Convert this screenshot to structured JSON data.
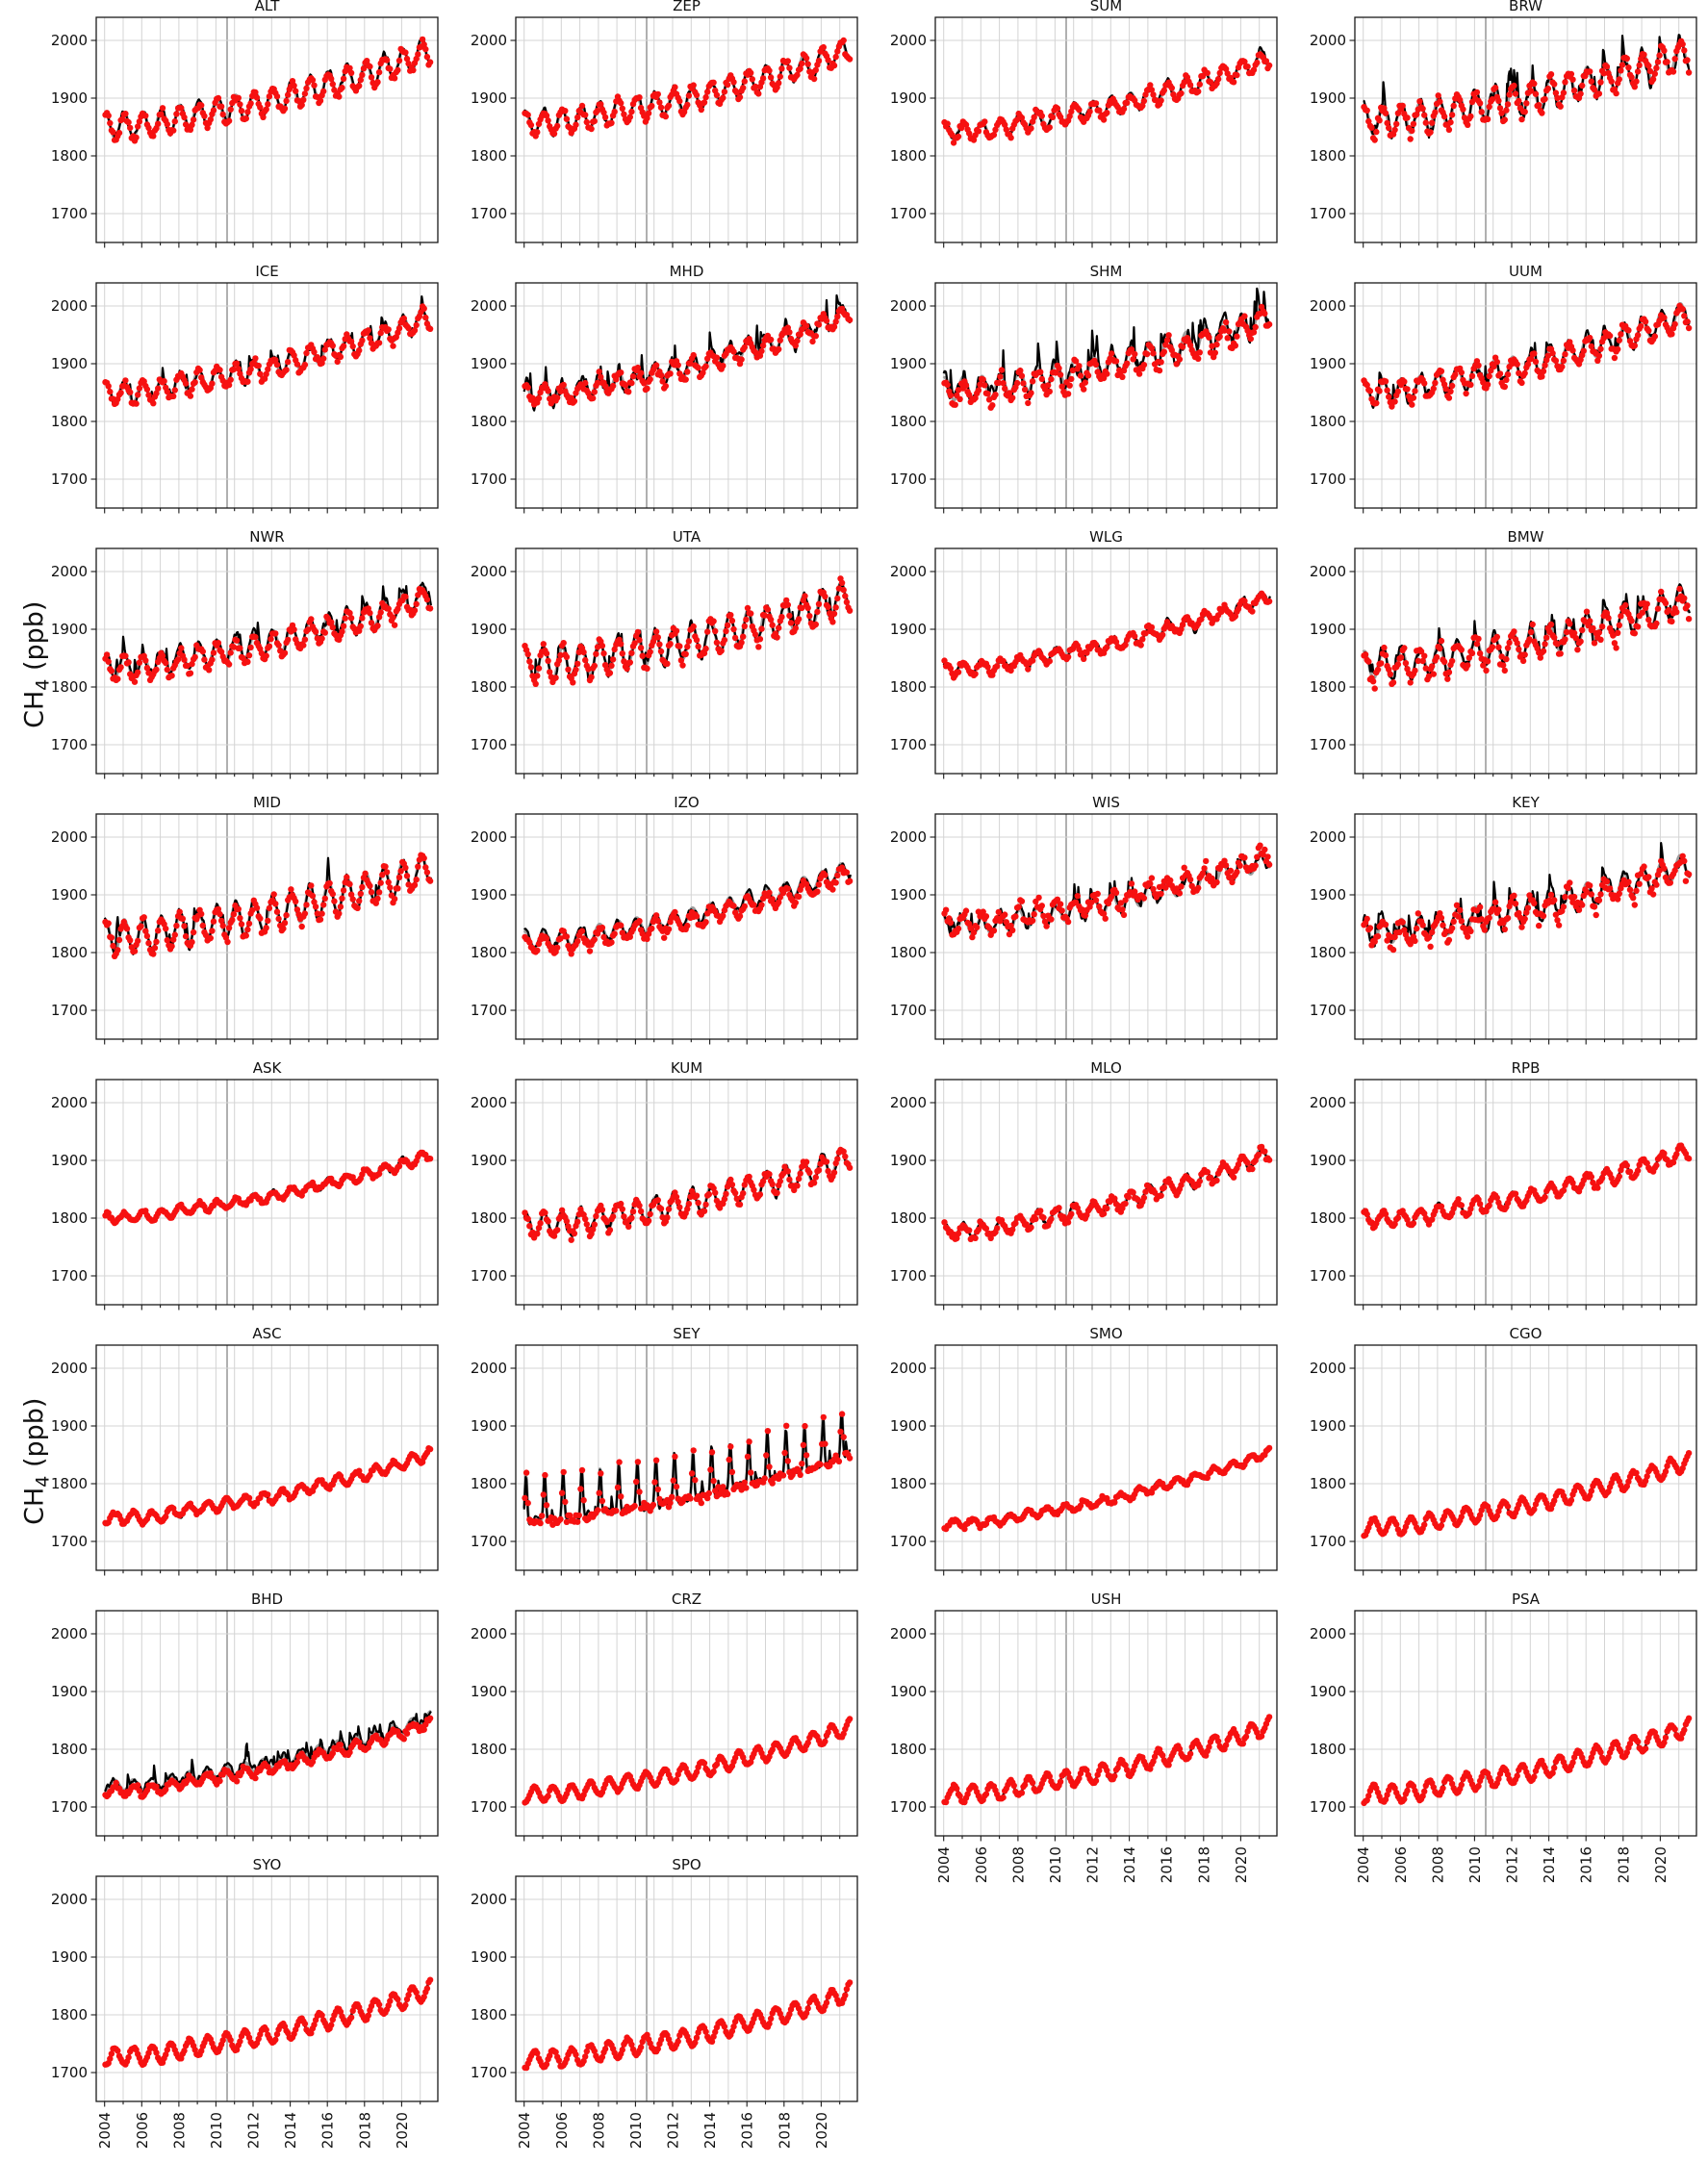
{
  "figure": {
    "background": "#ffffff",
    "ylabel_main": "CH",
    "ylabel_sub": "4",
    "ylabel_unit": " (ppb)"
  },
  "chart_data": {
    "type": "line",
    "description": "30-panel grid of CH4 time series per station, 2004-2021: black model line, gray smoothed line, red observation dots",
    "grid": {
      "rows": 8,
      "cols": 4
    },
    "x_range": [
      2003.55,
      2021.95
    ],
    "y_range_ppb": [
      1650,
      2040
    ],
    "y_ticks_ppb": [
      2000,
      1900,
      1800,
      1700
    ],
    "x_tick_years": [
      "2004",
      "2006",
      "2008",
      "2010",
      "2012",
      "2014",
      "2016",
      "2018",
      "2020"
    ],
    "x_grid_year_first": 2004,
    "x_grid_year_last": 2021,
    "x_grid_emphasized_year": 2010.6,
    "data_end_time": 2021.58,
    "legend": "none",
    "series_legend": [
      {
        "name": "model-monthly",
        "style": "black solid line"
      },
      {
        "name": "model-smoothed",
        "style": "gray solid line"
      },
      {
        "name": "observations",
        "style": "red filled dots, monthly"
      }
    ],
    "colors": {
      "model_line": "#000000",
      "smoothed_line": "#9e9e9e",
      "obs_marker": "#f61111",
      "grid_minor": "#d4d4d4",
      "grid_emph": "#a8a8a8",
      "frame": "#1a1a1a",
      "tick": "#1a1a1a",
      "text": "#111111"
    },
    "growth_curve": {
      "anchor_years": [
        2004,
        2005,
        2006,
        2007,
        2008,
        2009,
        2010,
        2011,
        2012,
        2013,
        2014,
        2015,
        2016,
        2017,
        2018,
        2019,
        2020,
        2021,
        2022
      ],
      "fraction": [
        0.0,
        0.01,
        0.015,
        0.04,
        0.1,
        0.145,
        0.185,
        0.225,
        0.27,
        0.315,
        0.375,
        0.45,
        0.52,
        0.575,
        0.645,
        0.72,
        0.8,
        0.9,
        1.0
      ]
    },
    "stations": [
      {
        "code": "ALT",
        "ppb_2004": 1852,
        "ppb_2022": 1990,
        "seasonal_amp": 22,
        "noise": 7,
        "obs_noise": 7,
        "obs_bias": -2,
        "phase": 0.06
      },
      {
        "code": "ZEP",
        "ppb_2004": 1858,
        "ppb_2022": 1992,
        "seasonal_amp": 20,
        "noise": 7,
        "obs_noise": 7,
        "obs_bias": -2,
        "phase": 0.06
      },
      {
        "code": "SUM",
        "ppb_2004": 1843,
        "ppb_2022": 1978,
        "seasonal_amp": 15,
        "noise": 6,
        "obs_noise": 6,
        "obs_bias": -2,
        "phase": 0.06
      },
      {
        "code": "BRW",
        "ppb_2004": 1862,
        "ppb_2022": 1988,
        "seasonal_amp": 26,
        "noise": 13,
        "obs_noise": 10,
        "obs_bias": -2,
        "phase": 0.06
      },
      {
        "code": "ICE",
        "ppb_2004": 1850,
        "ppb_2022": 1990,
        "seasonal_amp": 18,
        "noise": 8,
        "obs_noise": 7,
        "obs_bias": -2,
        "phase": 0.06
      },
      {
        "code": "MHD",
        "ppb_2004": 1848,
        "ppb_2022": 1998,
        "seasonal_amp": 16,
        "noise": 13,
        "obs_noise": 8,
        "obs_bias": -3,
        "phase": 0.06
      },
      {
        "code": "SHM",
        "ppb_2004": 1856,
        "ppb_2022": 1992,
        "seasonal_amp": 20,
        "noise": 17,
        "obs_noise": 12,
        "obs_bias": -8,
        "phase": 0.06
      },
      {
        "code": "UUM",
        "ppb_2004": 1852,
        "ppb_2022": 1998,
        "seasonal_amp": 20,
        "noise": 10,
        "obs_noise": 8,
        "obs_bias": -3,
        "phase": 0.06
      },
      {
        "code": "NWR",
        "ppb_2004": 1836,
        "ppb_2022": 1968,
        "seasonal_amp": 20,
        "noise": 9,
        "obs_noise": 8,
        "obs_bias": -5,
        "phase": 0.06
      },
      {
        "code": "UTA",
        "ppb_2004": 1840,
        "ppb_2022": 1965,
        "seasonal_amp": 28,
        "noise": 10,
        "obs_noise": 9,
        "obs_bias": -3,
        "phase": 0.06
      },
      {
        "code": "WLG",
        "ppb_2004": 1832,
        "ppb_2022": 1965,
        "seasonal_amp": 10,
        "noise": 7,
        "obs_noise": 6,
        "obs_bias": -1,
        "phase": 0.06
      },
      {
        "code": "BMW",
        "ppb_2004": 1838,
        "ppb_2022": 1960,
        "seasonal_amp": 24,
        "noise": 10,
        "obs_noise": 16,
        "obs_bias": -5,
        "phase": 0.06
      },
      {
        "code": "MID",
        "ppb_2004": 1828,
        "ppb_2022": 1955,
        "seasonal_amp": 28,
        "noise": 9,
        "obs_noise": 8,
        "obs_bias": -3,
        "phase": 0.06
      },
      {
        "code": "IZO",
        "ppb_2004": 1822,
        "ppb_2022": 1952,
        "seasonal_amp": 14,
        "noise": 7,
        "obs_noise": 7,
        "obs_bias": -8,
        "phase": 0.06
      },
      {
        "code": "WIS",
        "ppb_2004": 1845,
        "ppb_2022": 1970,
        "seasonal_amp": 16,
        "noise": 9,
        "obs_noise": 13,
        "obs_bias": 4,
        "phase": 0.06
      },
      {
        "code": "KEY",
        "ppb_2004": 1836,
        "ppb_2022": 1960,
        "seasonal_amp": 20,
        "noise": 11,
        "obs_noise": 15,
        "obs_bias": -4,
        "phase": 0.06
      },
      {
        "code": "ASK",
        "ppb_2004": 1802,
        "ppb_2022": 1916,
        "seasonal_amp": 8,
        "noise": 4,
        "obs_noise": 4,
        "obs_bias": -1,
        "phase": 0.06
      },
      {
        "code": "KUM",
        "ppb_2004": 1788,
        "ppb_2022": 1912,
        "seasonal_amp": 20,
        "noise": 7,
        "obs_noise": 7,
        "obs_bias": -2,
        "phase": 0.06
      },
      {
        "code": "MLO",
        "ppb_2004": 1778,
        "ppb_2022": 1922,
        "seasonal_amp": 12,
        "noise": 6,
        "obs_noise": 6,
        "obs_bias": -2,
        "phase": 0.06
      },
      {
        "code": "RPB",
        "ppb_2004": 1798,
        "ppb_2022": 1924,
        "seasonal_amp": 13,
        "noise": 4,
        "obs_noise": 4,
        "obs_bias": -1,
        "phase": 0.06
      },
      {
        "code": "ASC",
        "ppb_2004": 1740,
        "ppb_2022": 1858,
        "seasonal_amp": 9,
        "noise": 3,
        "obs_noise": 3,
        "obs_bias": 0,
        "phase": 0.55
      },
      {
        "code": "SEY",
        "ppb_2004": 1745,
        "ppb_2022": 1865,
        "seasonal_amp": 42,
        "noise": 8,
        "obs_noise": 9,
        "obs_bias": 0,
        "phase": 0.1,
        "sharp": true
      },
      {
        "code": "SMO",
        "ppb_2004": 1730,
        "ppb_2022": 1862,
        "seasonal_amp": 7,
        "noise": 3,
        "obs_noise": 3,
        "obs_bias": 0,
        "phase": 0.55
      },
      {
        "code": "CGO",
        "ppb_2004": 1725,
        "ppb_2022": 1845,
        "seasonal_amp": 14,
        "noise": 2,
        "obs_noise": 2,
        "obs_bias": 0,
        "phase": 0.55
      },
      {
        "code": "BHD",
        "ppb_2004": 1737,
        "ppb_2022": 1862,
        "seasonal_amp": 9,
        "noise": 8,
        "obs_noise": 5,
        "obs_bias": -9,
        "phase": 0.55
      },
      {
        "code": "CRZ",
        "ppb_2004": 1722,
        "ppb_2022": 1845,
        "seasonal_amp": 13,
        "noise": 2,
        "obs_noise": 2,
        "obs_bias": 0,
        "phase": 0.55
      },
      {
        "code": "USH",
        "ppb_2004": 1722,
        "ppb_2022": 1848,
        "seasonal_amp": 14,
        "noise": 3,
        "obs_noise": 3,
        "obs_bias": 0,
        "phase": 0.55
      },
      {
        "code": "PSA",
        "ppb_2004": 1722,
        "ppb_2022": 1845,
        "seasonal_amp": 15,
        "noise": 2,
        "obs_noise": 2,
        "obs_bias": 0,
        "phase": 0.55
      },
      {
        "code": "SYO",
        "ppb_2004": 1727,
        "ppb_2022": 1850,
        "seasonal_amp": 15,
        "noise": 2,
        "obs_noise": 2,
        "obs_bias": 0,
        "phase": 0.55
      },
      {
        "code": "SPO",
        "ppb_2004": 1723,
        "ppb_2022": 1845,
        "seasonal_amp": 15,
        "noise": 2,
        "obs_noise": 2,
        "obs_bias": 0,
        "phase": 0.55
      }
    ],
    "x_labeled_stations": [
      "SYO",
      "SPO",
      "USH",
      "PSA"
    ]
  }
}
